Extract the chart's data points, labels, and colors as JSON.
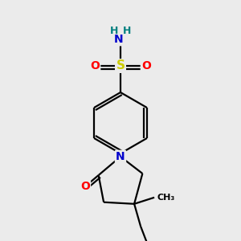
{
  "bg_color": "#ebebeb",
  "atom_colors": {
    "C": "#000000",
    "N": "#0000cc",
    "O": "#ff0000",
    "S": "#cccc00",
    "H": "#008080"
  },
  "figsize": [
    3.0,
    3.0
  ],
  "dpi": 100,
  "lw": 1.6
}
